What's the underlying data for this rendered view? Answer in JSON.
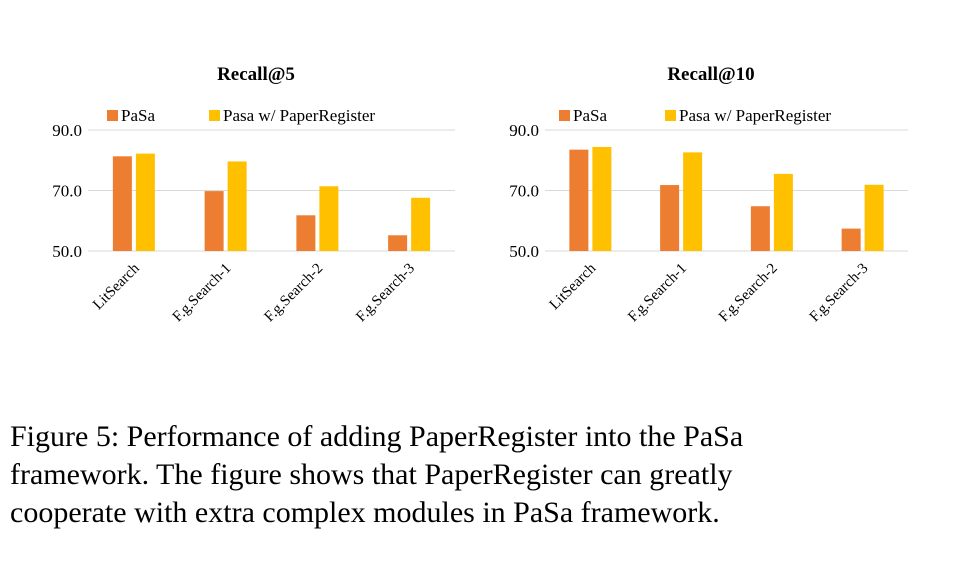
{
  "chart_data": [
    {
      "type": "bar",
      "title": "Recall@5",
      "categories": [
        "LitSearch",
        "F.g.Search-1",
        "F.g.Search-2",
        "F.g.Search-3"
      ],
      "series": [
        {
          "name": "PaSa",
          "color": "#ED7D31",
          "values": [
            81.3,
            69.8,
            61.8,
            55.2
          ]
        },
        {
          "name": "Pasa w/ PaperRegister",
          "color": "#FFC000",
          "values": [
            82.2,
            79.6,
            71.4,
            67.6
          ]
        }
      ],
      "yticks": [
        "50.0",
        "70.0",
        "90.0"
      ],
      "ylim": [
        50,
        90
      ],
      "grid": true,
      "legend_position": "top"
    },
    {
      "type": "bar",
      "title": "Recall@10",
      "categories": [
        "LitSearch",
        "F.g.Search-1",
        "F.g.Search-2",
        "F.g.Search-3"
      ],
      "series": [
        {
          "name": "PaSa",
          "color": "#ED7D31",
          "values": [
            83.5,
            71.8,
            64.8,
            57.4
          ]
        },
        {
          "name": "Pasa w/ PaperRegister",
          "color": "#FFC000",
          "values": [
            84.4,
            82.6,
            75.5,
            71.9
          ]
        }
      ],
      "yticks": [
        "50.0",
        "70.0",
        "90.0"
      ],
      "ylim": [
        50,
        90
      ],
      "grid": true,
      "legend_position": "top"
    }
  ],
  "caption": {
    "lines": [
      "Figure 5: Performance of adding PaperRegister into the PaSa",
      "framework. The figure shows that PaperRegister can greatly",
      "cooperate with extra complex modules in PaSa framework."
    ]
  }
}
